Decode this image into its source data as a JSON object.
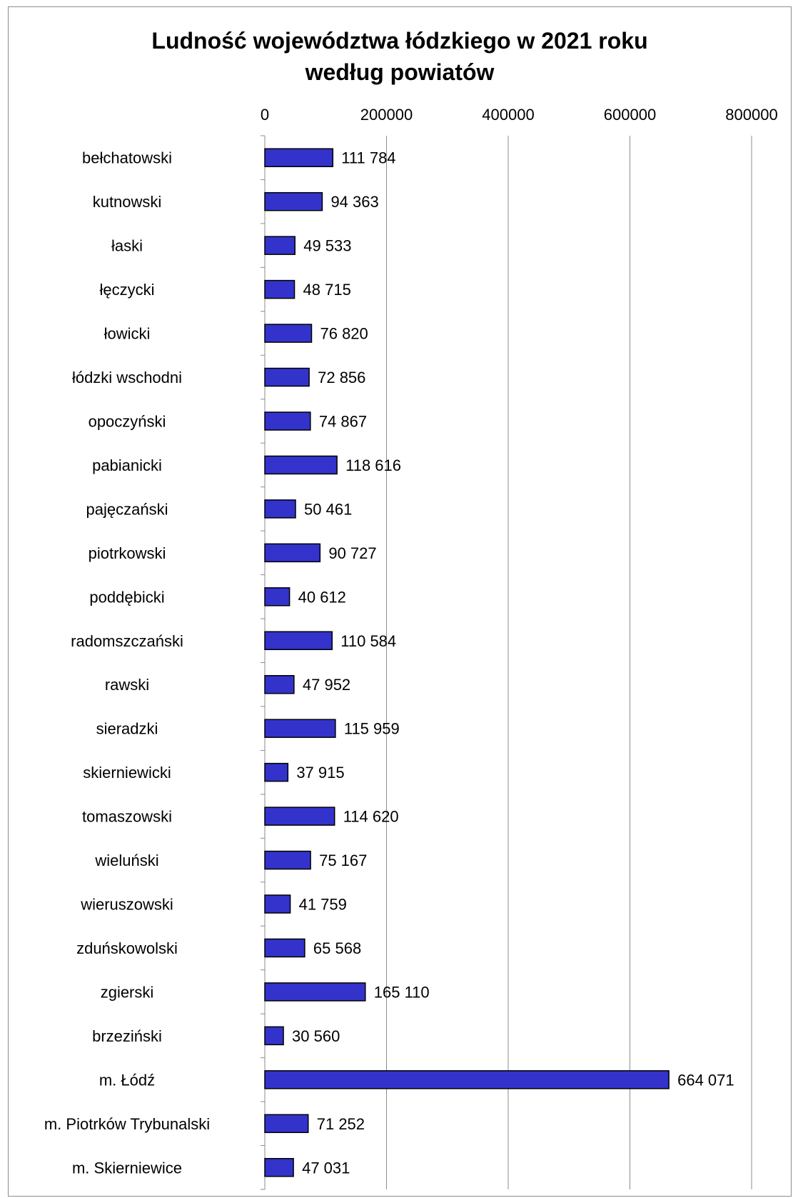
{
  "chart_data": {
    "type": "bar",
    "orientation": "horizontal",
    "title": "Ludność województwa łódzkiego w 2021 roku",
    "subtitle": "według powiatów",
    "xlim": [
      0,
      800000
    ],
    "x_ticks": [
      "0",
      "200000",
      "400000",
      "600000",
      "800000"
    ],
    "x_tick_values": [
      0,
      200000,
      400000,
      600000,
      800000
    ],
    "grid": true,
    "bar_color": "#3333cc",
    "bar_edge_color": "#000000",
    "categories": [
      "bełchatowski",
      "kutnowski",
      "łaski",
      "łęczycki",
      "łowicki",
      "łódzki wschodni",
      "opoczyński",
      "pabianicki",
      "pajęczański",
      "piotrkowski",
      "poddębicki",
      "radomszczański",
      "rawski",
      "sieradzki",
      "skierniewicki",
      "tomaszowski",
      "wieluński",
      "wieruszowski",
      "zduńskowolski",
      "zgierski",
      "brzeziński",
      "m. Łódź",
      "m. Piotrków Trybunalski",
      "m. Skierniewice"
    ],
    "values": [
      111784,
      94363,
      49533,
      48715,
      76820,
      72856,
      74867,
      118616,
      50461,
      90727,
      40612,
      110584,
      47952,
      115959,
      37915,
      114620,
      75167,
      41759,
      65568,
      165110,
      30560,
      664071,
      71252,
      47031
    ],
    "data_labels": [
      "111 784",
      "94 363",
      "49 533",
      "48 715",
      "76 820",
      "72 856",
      "74 867",
      "118 616",
      "50 461",
      "90 727",
      "40 612",
      "110 584",
      "47 952",
      "115 959",
      "37 915",
      "114 620",
      "75 167",
      "41 759",
      "65 568",
      "165 110",
      "30 560",
      "664 071",
      "71 252",
      "47 031"
    ]
  }
}
